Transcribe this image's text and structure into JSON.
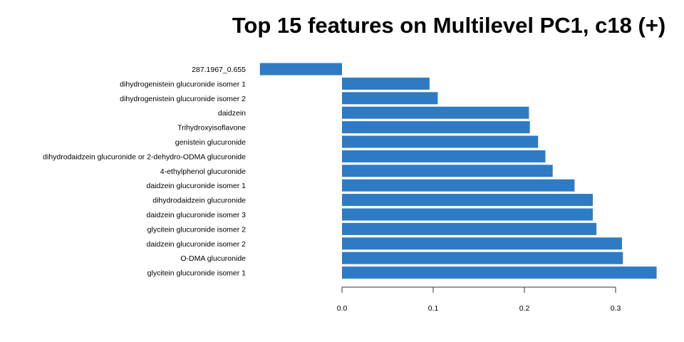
{
  "chart_data": {
    "type": "bar",
    "orientation": "horizontal",
    "title": "Top 15 features on Multilevel PC1, c18 (+)",
    "xlabel": "",
    "ylabel": "",
    "xlim": [
      -0.09,
      0.345
    ],
    "x_ticks": [
      "0.0",
      "0.1",
      "0.2",
      "0.3"
    ],
    "x_tick_values": [
      0.0,
      0.1,
      0.2,
      0.3
    ],
    "bar_color": "#2e7bc4",
    "grid": false,
    "legend": "none",
    "categories": [
      "287.1967_0.655",
      "dihydrogenistein glucuronide isomer 1",
      "dihydrogenistein glucuronide isomer 2",
      "daidzein",
      "Trihydroxyisoflavone",
      "genistein glucuronide",
      "dihydrodaidzein glucuronide or 2-dehydro-ODMA glucuronide",
      "4-ethylphenol glucuronide",
      "daidzein glucuronide isomer 1",
      "dihydrodaidzein glucuronide",
      "daidzein glucuronide isomer 3",
      "glycitein glucuronide isomer 2",
      "daidzein glucuronide isomer 2",
      "O-DMA glucuronide",
      "glycitein glucuronide isomer 1"
    ],
    "values": [
      -0.09,
      0.096,
      0.105,
      0.205,
      0.206,
      0.215,
      0.223,
      0.231,
      0.255,
      0.275,
      0.275,
      0.279,
      0.307,
      0.308,
      0.345
    ]
  }
}
